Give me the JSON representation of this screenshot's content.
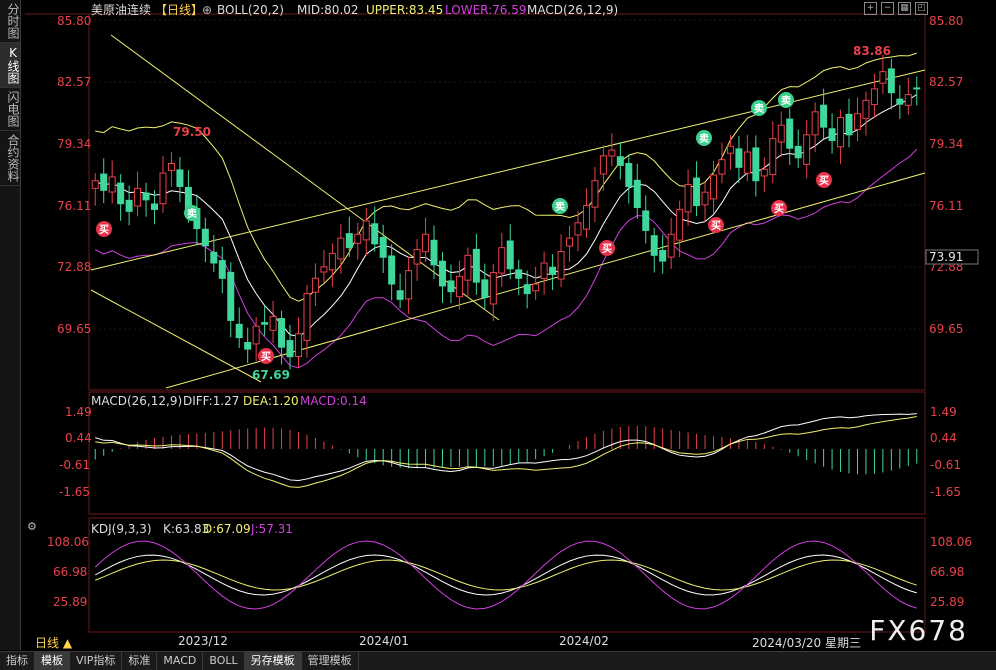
{
  "left_tabs": [
    "分时图",
    "K线图",
    "闪电图",
    "合约资料"
  ],
  "header": {
    "instrument": "美原油连续",
    "period": "【日线】",
    "settings_glyph": "⊕",
    "boll": "BOLL(20,2)",
    "mid": "MID:80.02",
    "upper": "UPPER:83.45",
    "lower": "LOWER:76.59",
    "macd_title": "MACD(26,12,9)"
  },
  "price_axis": {
    "ticks": [
      "85.80",
      "82.57",
      "79.34",
      "76.11",
      "72.88",
      "69.65"
    ],
    "current": "73.91"
  },
  "annotations": {
    "high_label": "83.86",
    "peak_label": "79.50",
    "low_label": "67.69",
    "buy": "买",
    "sell": "卖"
  },
  "macd_panel": {
    "title": "MACD(26,12,9)",
    "diff": "DIFF:1.27",
    "dea": "DEA:1.20",
    "macd": "MACD:0.14",
    "ticks": [
      "1.49",
      "0.44",
      "-0.61",
      "-1.65"
    ]
  },
  "kdj_panel": {
    "title": "KDJ(9,3,3)",
    "k": "K:63.83",
    "d": "D:67.09",
    "j": "J:57.31",
    "ticks": [
      "108.06",
      "66.98",
      "25.89"
    ]
  },
  "time_axis": {
    "period_label": "日线 ▲",
    "months": [
      "2023/12",
      "2024/01",
      "2024/02"
    ],
    "cursor_date": "2024/03/20 星期三"
  },
  "bottom_tabs": [
    "指标",
    "模板",
    "VIP指标",
    "标准",
    "MACD",
    "BOLL",
    "另存模板",
    "管理模板"
  ],
  "watermark": "FX678",
  "colors": {
    "up": "#e8404a",
    "down": "#3fd79b",
    "boll_mid": "#ffffff",
    "boll_upper": "#f0f070",
    "boll_lower": "#d040e0",
    "channel": "#f0f070",
    "buy_badge": "#e8324a",
    "sell_badge": "#3ad08c"
  }
}
